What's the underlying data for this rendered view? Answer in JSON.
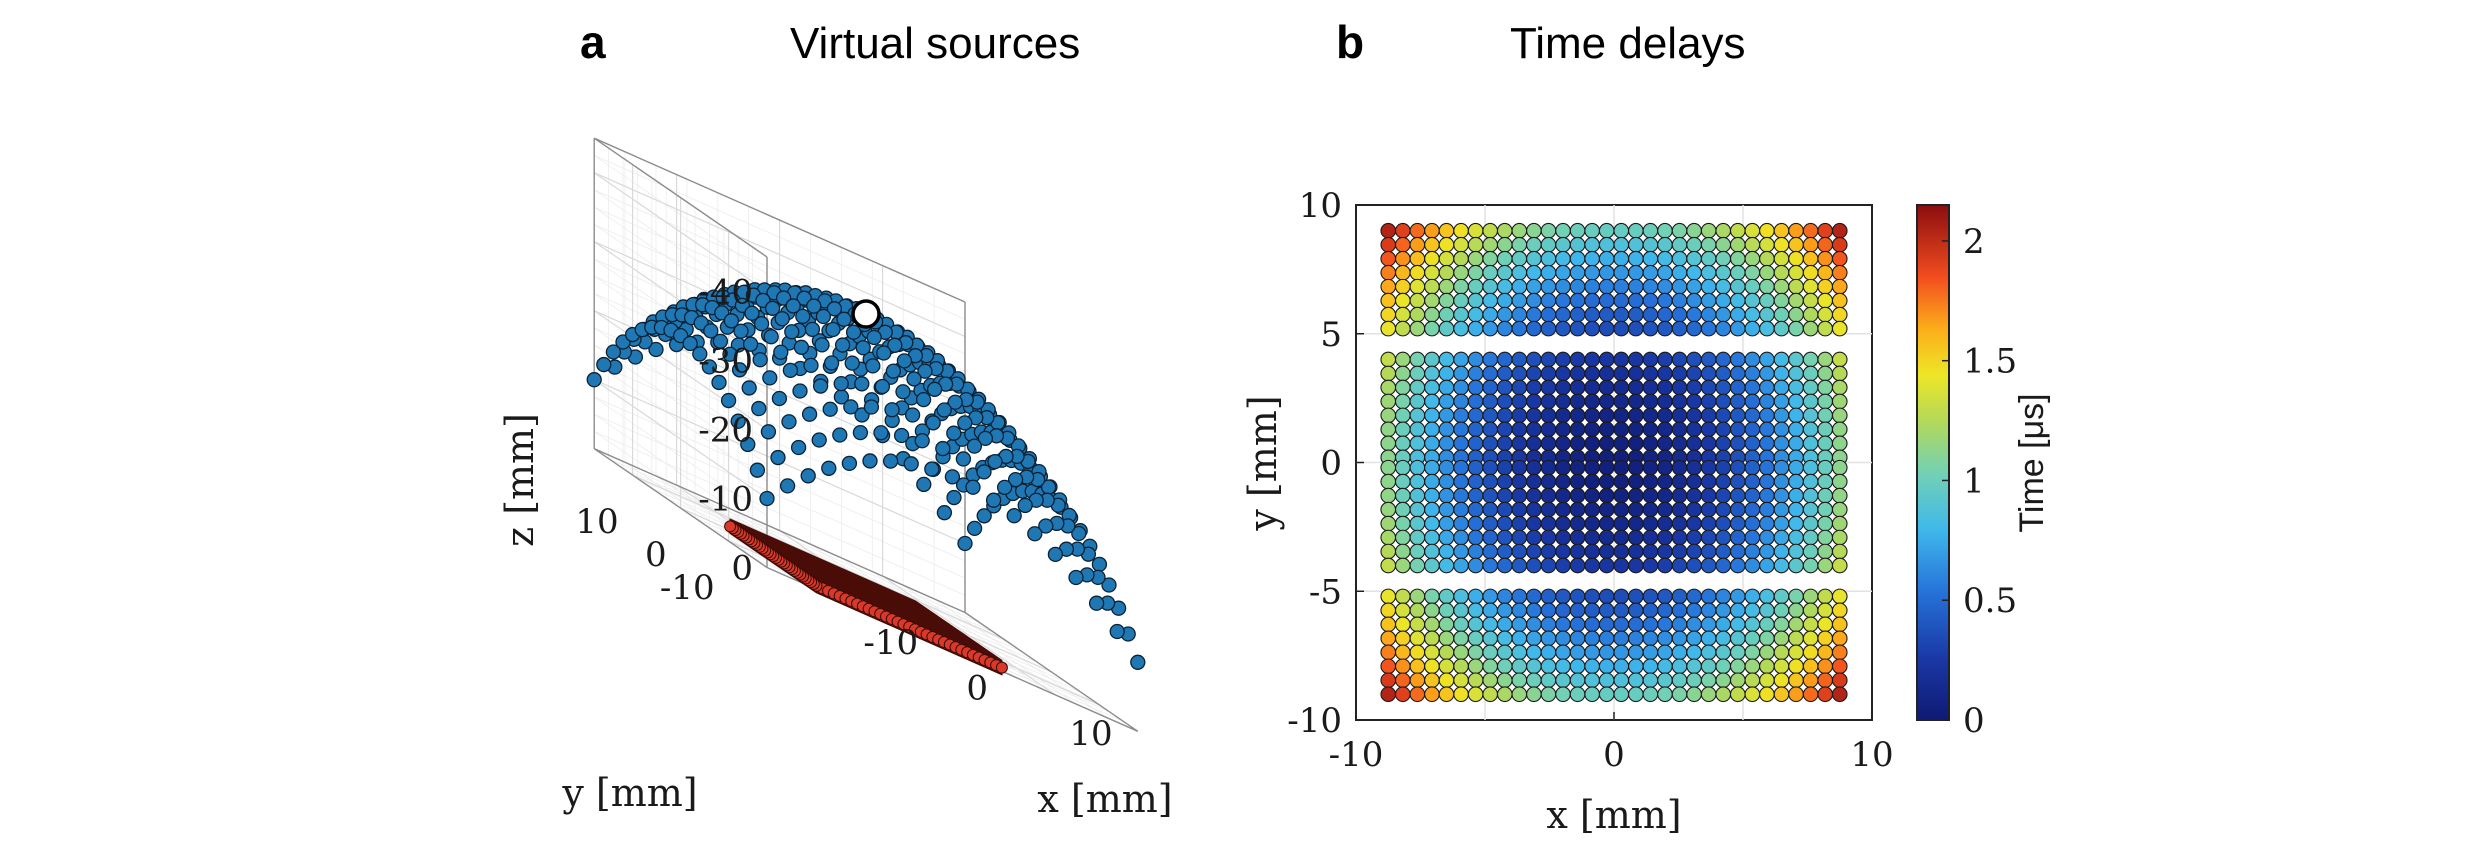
{
  "chart_data": [
    {
      "panel": "a",
      "type": "scatter",
      "title": "Virtual sources",
      "xlabel": "x [mm]",
      "ylabel": "y [mm]",
      "zlabel": "z [mm]",
      "xlim": [
        -18,
        18
      ],
      "ylim": [
        -18,
        18
      ],
      "zlim": [
        0,
        -45
      ],
      "x_ticks": [
        "-10",
        "0",
        "10"
      ],
      "y_ticks": [
        "-10",
        "0",
        "10"
      ],
      "z_ticks": [
        "0",
        "-10",
        "-20",
        "-30",
        "-40"
      ],
      "grid": true,
      "series": [
        {
          "description": "virtual point sources on curved surface",
          "color": "#1f77b4",
          "x_range": [
            -18,
            18
          ],
          "y_range": [
            -18,
            18
          ],
          "z_center": -40,
          "z_corner": -10
        },
        {
          "description": "focus point",
          "color": "#ffffff",
          "x": 0,
          "y": 0,
          "z": -40
        },
        {
          "description": "array elements",
          "color": "#c0392b",
          "x_range": [
            -9,
            9
          ],
          "y_range": [
            -9,
            9
          ],
          "z": 0
        }
      ]
    },
    {
      "panel": "b",
      "type": "scatter",
      "title": "Time delays",
      "xlabel": "x [mm]",
      "ylabel": "y [mm]",
      "xlim": [
        -10,
        10
      ],
      "ylim": [
        -10,
        10
      ],
      "x_ticks": [
        "-10",
        "0",
        "10"
      ],
      "y_ticks": [
        "10",
        "5",
        "0",
        "-5",
        "-10"
      ],
      "colorbar": {
        "label": "Time [μs]",
        "range": [
          0,
          2.15
        ],
        "ticks": [
          "2",
          "1.5",
          "1",
          "0.5",
          "0"
        ]
      },
      "element_grid": {
        "columns": 32,
        "rows_per_block": 8,
        "blocks": 4,
        "x_range": [
          -8.75,
          8.75
        ],
        "block_y_ranges": [
          [
            5.2,
            9.0
          ],
          [
            0.2,
            4.0
          ],
          [
            -4.0,
            -0.2
          ],
          [
            -9.0,
            -5.2
          ]
        ]
      },
      "delay_model": {
        "min_us": 0.05,
        "max_us": 2.1
      }
    }
  ],
  "panels": {
    "a": {
      "letter": "a",
      "title": "Virtual sources"
    },
    "b": {
      "letter": "b",
      "title": "Time delays"
    }
  }
}
